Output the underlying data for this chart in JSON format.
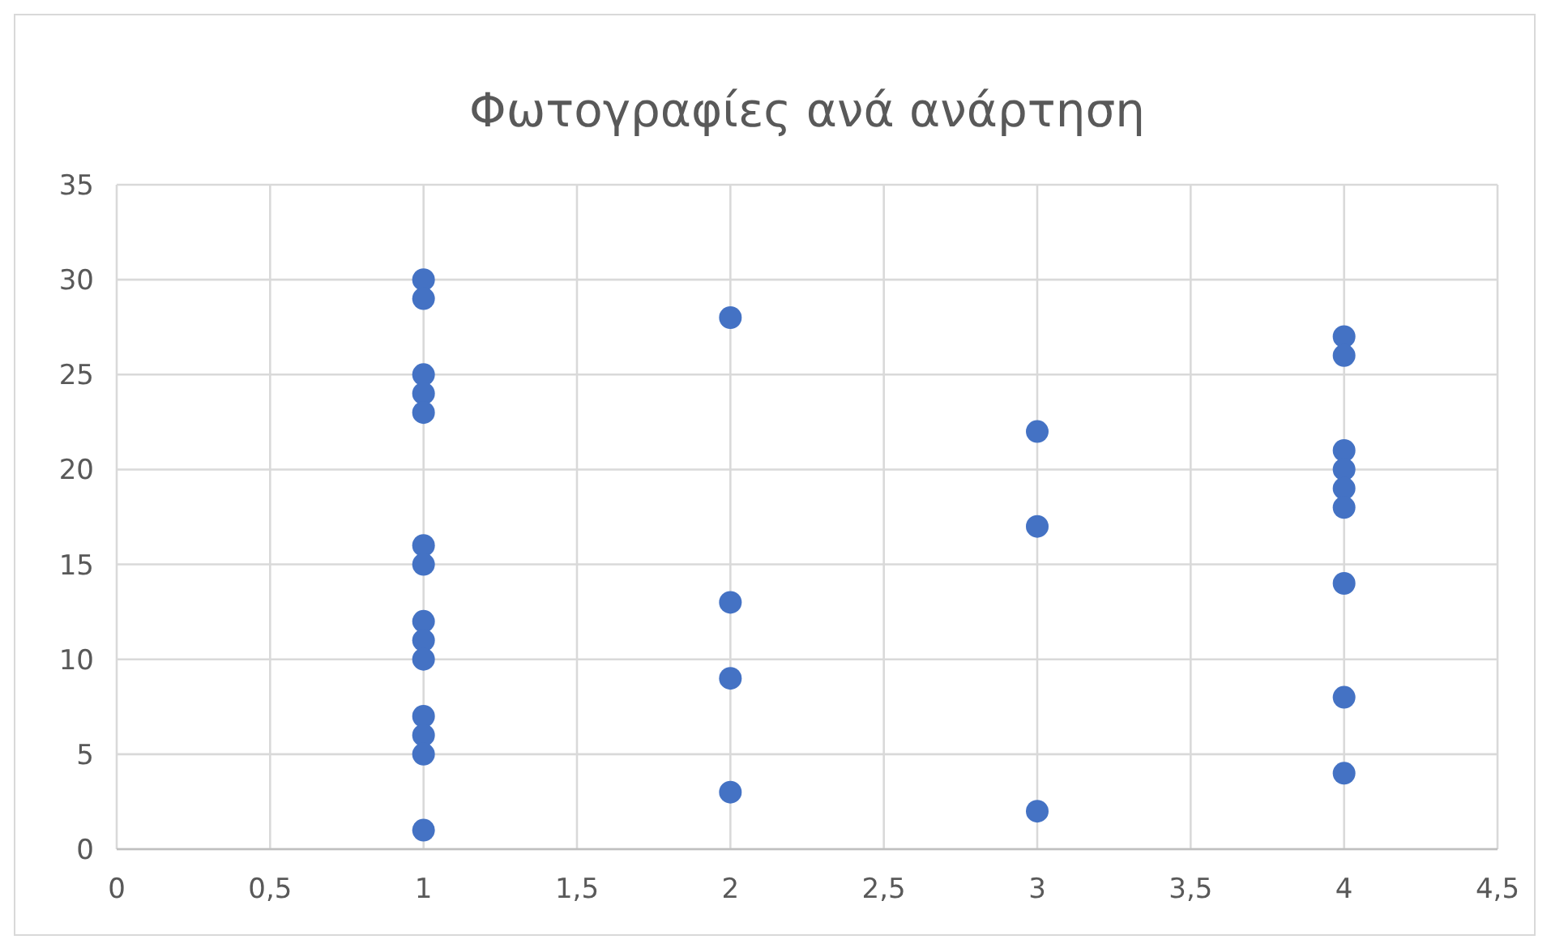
{
  "chart_data": {
    "type": "scatter",
    "title": "Φωτογραφίες ανά ανάρτηση",
    "x": [
      1,
      1,
      1,
      1,
      1,
      1,
      1,
      1,
      1,
      1,
      1,
      1,
      1,
      1,
      2,
      2,
      2,
      2,
      3,
      3,
      3,
      4,
      4,
      4,
      4,
      4,
      4,
      4,
      4,
      4
    ],
    "series": [
      {
        "color": "#4472c4",
        "values": [
          30,
          29,
          25,
          24,
          23,
          16,
          15,
          12,
          11,
          10,
          7,
          6,
          5,
          1,
          28,
          13,
          9,
          3,
          22,
          17,
          2,
          27,
          26,
          21,
          20,
          19,
          18,
          14,
          8,
          4
        ]
      }
    ],
    "xlim": [
      0,
      4.5
    ],
    "xticks": [
      0,
      {
        "value": 0.5,
        "label": "0,5"
      },
      1,
      {
        "value": 1.5,
        "label": "1,5"
      },
      2,
      {
        "value": 2.5,
        "label": "2,5"
      },
      3,
      {
        "value": 3.5,
        "label": "3,5"
      },
      4,
      {
        "value": 4.5,
        "label": "4,5"
      }
    ],
    "ylim": [
      0,
      35
    ],
    "yticks": [
      0,
      5,
      10,
      15,
      20,
      25,
      30,
      35
    ],
    "grid": true,
    "marker": "circle"
  }
}
